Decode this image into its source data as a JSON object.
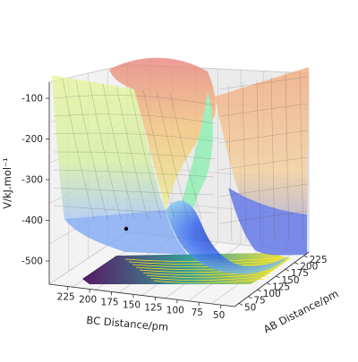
{
  "chart_data": {
    "type": "surface3d",
    "title": "",
    "xlabel": "AB Distance/pm",
    "ylabel": "BC Distance/pm",
    "zlabel": "V/kJ.mol⁻¹",
    "x_ticks": [
      "50",
      "75",
      "100",
      "125",
      "150",
      "175",
      "200",
      "225"
    ],
    "y_ticks": [
      "225",
      "200",
      "175",
      "150",
      "125",
      "100",
      "75",
      "50"
    ],
    "z_ticks": [
      "-100",
      "-200",
      "-300",
      "-400",
      "-500"
    ],
    "xlim": [
      50,
      240
    ],
    "ylim": [
      50,
      240
    ],
    "zlim": [
      -580,
      -60
    ],
    "colormap_surface": "jet",
    "colormap_contour": "viridis",
    "surface_alpha": 0.4,
    "grid": true,
    "contour_floor": true
  }
}
